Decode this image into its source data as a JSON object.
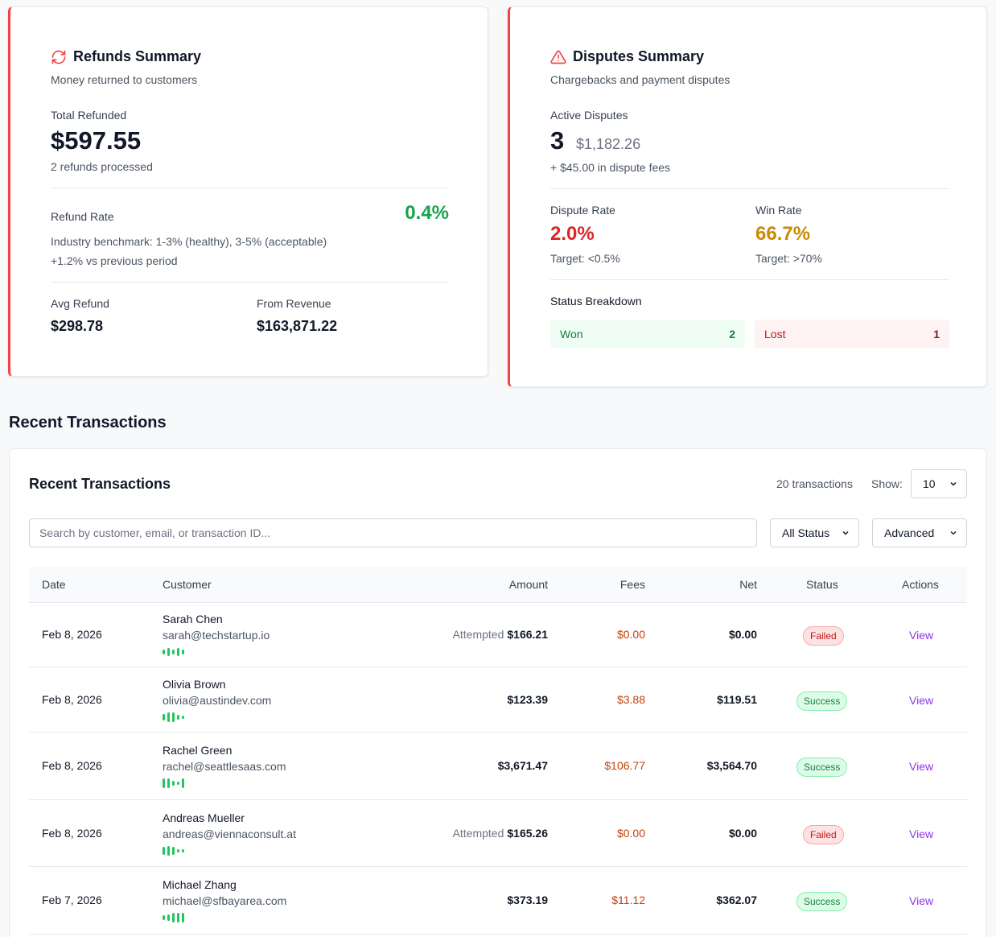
{
  "refunds": {
    "title": "Refunds Summary",
    "subtitle": "Money returned to customers",
    "total_label": "Total Refunded",
    "total_value": "$597.55",
    "processed": "2 refunds processed",
    "rate_label": "Refund Rate",
    "rate_value": "0.4%",
    "benchmark": "Industry benchmark: 1-3% (healthy), 3-5% (acceptable)",
    "vs_previous": "+1.2% vs previous period",
    "avg_label": "Avg Refund",
    "avg_value": "$298.78",
    "from_label": "From Revenue",
    "from_value": "$163,871.22",
    "accent_color": "#ef4444"
  },
  "disputes": {
    "title": "Disputes Summary",
    "subtitle": "Chargebacks and payment disputes",
    "active_label": "Active Disputes",
    "active_count": "3",
    "active_amount": "$1,182.26",
    "fees": "+ $45.00 in dispute fees",
    "rate_label": "Dispute Rate",
    "rate_value": "2.0%",
    "rate_target": "Target: <0.5%",
    "win_label": "Win Rate",
    "win_value": "66.7%",
    "win_target": "Target: >70%",
    "breakdown_label": "Status Breakdown",
    "won_label": "Won",
    "won_count": "2",
    "lost_label": "Lost",
    "lost_count": "1"
  },
  "section_title": "Recent Transactions",
  "transactions": {
    "title": "Recent Transactions",
    "count_text": "20 transactions",
    "show_label": "Show:",
    "show_value": "10",
    "search_placeholder": "Search by customer, email, or transaction ID...",
    "status_filter": "All Status",
    "advanced_label": "Advanced",
    "columns": [
      "Date",
      "Customer",
      "Amount",
      "Fees",
      "Net",
      "Status",
      "Actions"
    ],
    "rows": [
      {
        "date": "Feb 8, 2026",
        "name": "Sarah Chen",
        "email": "sarah@techstartup.io",
        "amount_prefix": "Attempted",
        "amount": "$166.21",
        "fees": "$0.00",
        "net": "$0.00",
        "status": "Failed",
        "action": "View",
        "bars": [
          6,
          10,
          6,
          10,
          6
        ]
      },
      {
        "date": "Feb 8, 2026",
        "name": "Olivia Brown",
        "email": "olivia@austindev.com",
        "amount_prefix": "",
        "amount": "$123.39",
        "fees": "$3.88",
        "net": "$119.51",
        "status": "Success",
        "action": "View",
        "bars": [
          8,
          12,
          12,
          6,
          4
        ]
      },
      {
        "date": "Feb 8, 2026",
        "name": "Rachel Green",
        "email": "rachel@seattlesaas.com",
        "amount_prefix": "",
        "amount": "$3,671.47",
        "fees": "$106.77",
        "net": "$3,564.70",
        "status": "Success",
        "action": "View",
        "bars": [
          12,
          12,
          6,
          4,
          12
        ]
      },
      {
        "date": "Feb 8, 2026",
        "name": "Andreas Mueller",
        "email": "andreas@viennaconsult.at",
        "amount_prefix": "Attempted",
        "amount": "$165.26",
        "fees": "$0.00",
        "net": "$0.00",
        "status": "Failed",
        "action": "View",
        "bars": [
          10,
          12,
          10,
          4,
          4
        ]
      },
      {
        "date": "Feb 7, 2026",
        "name": "Michael Zhang",
        "email": "michael@sfbayarea.com",
        "amount_prefix": "",
        "amount": "$373.19",
        "fees": "$11.12",
        "net": "$362.07",
        "status": "Success",
        "action": "View",
        "bars": [
          6,
          8,
          12,
          12,
          12
        ]
      }
    ]
  }
}
